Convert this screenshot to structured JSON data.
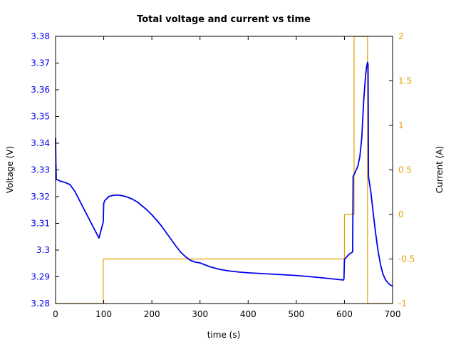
{
  "chart_data": {
    "type": "line",
    "title": "Total voltage and current vs time",
    "xlabel": "time (s)",
    "ylabel_left": "Voltage (V)",
    "ylabel_right": "Current (A)",
    "xlim": [
      0,
      700
    ],
    "ylim_left": [
      3.28,
      3.38
    ],
    "ylim_right": [
      -1,
      2
    ],
    "x_ticks": [
      0,
      100,
      200,
      300,
      400,
      500,
      600,
      700
    ],
    "x_tick_labels": [
      "0",
      "100",
      "200",
      "300",
      "400",
      "500",
      "600",
      "700"
    ],
    "y_left_ticks": [
      3.28,
      3.29,
      3.3,
      3.31,
      3.32,
      3.33,
      3.34,
      3.35,
      3.36,
      3.37,
      3.38
    ],
    "y_left_tick_labels": [
      "3.28",
      "3.29",
      "3.3",
      "3.31",
      "3.32",
      "3.33",
      "3.34",
      "3.35",
      "3.36",
      "3.37",
      "3.38"
    ],
    "y_right_ticks": [
      -1,
      -0.5,
      0,
      0.5,
      1,
      1.5,
      2
    ],
    "y_right_tick_labels": [
      "-1",
      "-0.5",
      "0",
      "0.5",
      "1",
      "1.5",
      "2"
    ],
    "grid": false,
    "series": [
      {
        "axis": "left",
        "color": "#0000ee",
        "points": [
          [
            0,
            3.342
          ],
          [
            0.6,
            3.3335
          ],
          [
            1.5,
            3.3265
          ],
          [
            10,
            3.3258
          ],
          [
            20,
            3.3253
          ],
          [
            30,
            3.3245
          ],
          [
            40,
            3.322
          ],
          [
            50,
            3.3185
          ],
          [
            60,
            3.315
          ],
          [
            70,
            3.3115
          ],
          [
            80,
            3.308
          ],
          [
            90,
            3.3045
          ],
          [
            99,
            3.3105
          ],
          [
            100,
            3.3175
          ],
          [
            102,
            3.3185
          ],
          [
            105,
            3.319
          ],
          [
            110,
            3.32
          ],
          [
            120,
            3.3205
          ],
          [
            130,
            3.3206
          ],
          [
            140,
            3.3203
          ],
          [
            150,
            3.3198
          ],
          [
            160,
            3.319
          ],
          [
            170,
            3.318
          ],
          [
            180,
            3.3165
          ],
          [
            190,
            3.315
          ],
          [
            200,
            3.3132
          ],
          [
            210,
            3.3112
          ],
          [
            220,
            3.309
          ],
          [
            230,
            3.3065
          ],
          [
            240,
            3.304
          ],
          [
            250,
            3.3015
          ],
          [
            260,
            3.2992
          ],
          [
            270,
            3.2975
          ],
          [
            280,
            3.2962
          ],
          [
            290,
            3.2955
          ],
          [
            300,
            3.2952
          ],
          [
            320,
            3.2938
          ],
          [
            340,
            3.2928
          ],
          [
            360,
            3.2922
          ],
          [
            380,
            3.2918
          ],
          [
            400,
            3.2915
          ],
          [
            450,
            3.291
          ],
          [
            500,
            3.2905
          ],
          [
            550,
            3.2897
          ],
          [
            598,
            3.2888
          ],
          [
            599,
            3.2893
          ],
          [
            600,
            3.2965
          ],
          [
            605,
            3.2975
          ],
          [
            610,
            3.2985
          ],
          [
            617,
            3.2993
          ],
          [
            618,
            3.3275
          ],
          [
            622,
            3.329
          ],
          [
            628,
            3.3315
          ],
          [
            632,
            3.335
          ],
          [
            636,
            3.342
          ],
          [
            640,
            3.356
          ],
          [
            644,
            3.3655
          ],
          [
            646,
            3.3685
          ],
          [
            648,
            3.3703
          ],
          [
            649,
            3.3695
          ],
          [
            650,
            3.3275
          ],
          [
            655,
            3.3215
          ],
          [
            660,
            3.3135
          ],
          [
            665,
            3.306
          ],
          [
            670,
            3.2995
          ],
          [
            675,
            3.2945
          ],
          [
            680,
            3.291
          ],
          [
            685,
            3.289
          ],
          [
            690,
            3.2878
          ],
          [
            695,
            3.287
          ],
          [
            700,
            3.2865
          ]
        ]
      },
      {
        "axis": "right",
        "color": "#e8a000",
        "points": [
          [
            0,
            -1
          ],
          [
            99,
            -1
          ],
          [
            99,
            -0.5
          ],
          [
            600,
            -0.5
          ],
          [
            600,
            0
          ],
          [
            620,
            0
          ],
          [
            620,
            2
          ],
          [
            648,
            2
          ],
          [
            648,
            -1
          ],
          [
            700,
            -1
          ]
        ]
      }
    ]
  }
}
